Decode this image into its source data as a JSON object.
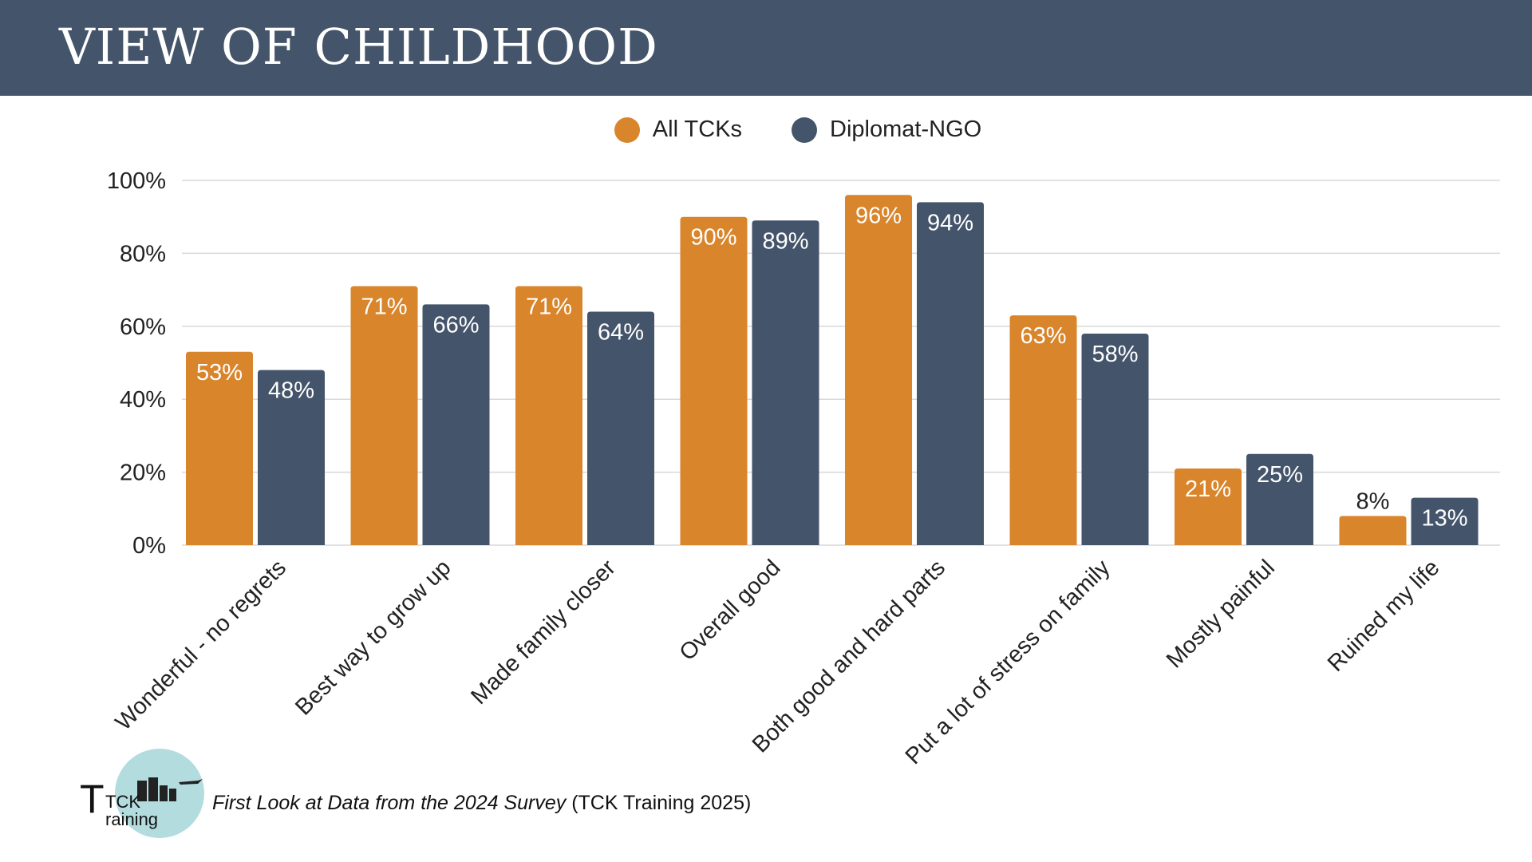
{
  "header": {
    "title": "VIEW OF CHILDHOOD"
  },
  "colors": {
    "all_tcks": "#d9852b",
    "diplomat_ngo": "#44546a",
    "header_bg": "#44546a",
    "grid": "#d9d9d9"
  },
  "chart_data": {
    "type": "bar",
    "categories": [
      "Wonderful - no regrets",
      "Best way to grow up",
      "Made family closer",
      "Overall good",
      "Both good and hard parts",
      "Put a lot of stress on family",
      "Mostly painful",
      "Ruined my life"
    ],
    "series": [
      {
        "name": "All TCKs",
        "values": [
          53,
          71,
          71,
          90,
          96,
          63,
          21,
          8
        ],
        "labels": [
          "53%",
          "71%",
          "71%",
          "90%",
          "96%",
          "63%",
          "21%",
          "8%"
        ]
      },
      {
        "name": "Diplomat-NGO",
        "values": [
          48,
          66,
          64,
          89,
          94,
          58,
          25,
          13
        ],
        "labels": [
          "48%",
          "66%",
          "64%",
          "89%",
          "94%",
          "58%",
          "25%",
          "13%"
        ]
      }
    ],
    "ylim": [
      0,
      100
    ],
    "yticks": [
      "0%",
      "20%",
      "40%",
      "60%",
      "80%",
      "100%"
    ],
    "grid": true,
    "legend_position": "top-center"
  },
  "footer": {
    "source_italic": "First Look at Data from the 2024 Survey",
    "source_rest": " (TCK Training 2025)"
  },
  "logo": {
    "line1": "TCK",
    "line2": "raining"
  }
}
